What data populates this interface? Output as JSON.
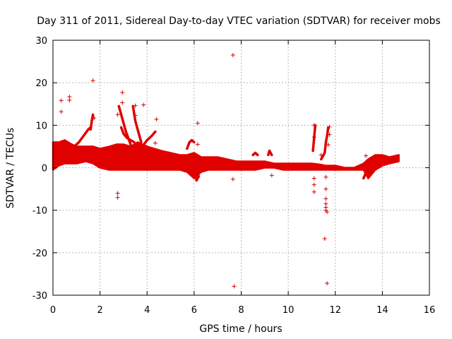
{
  "chart_data": {
    "type": "scatter",
    "title": "Day 311 of 2011, Sidereal Day-to-day VTEC variation (SDTVAR) for receiver mobs",
    "xlabel": "GPS time / hours",
    "ylabel": "SDTVAR / TECUs",
    "xlim": [
      0,
      16
    ],
    "ylim": [
      -30,
      30
    ],
    "xticks": [
      0,
      2,
      4,
      6,
      8,
      10,
      12,
      14,
      16
    ],
    "yticks": [
      -30,
      -20,
      -10,
      0,
      10,
      20,
      30
    ],
    "grid": true,
    "marker": "+",
    "color": "#e00000",
    "band": {
      "x": [
        0,
        0.25,
        0.5,
        0.8,
        1.0,
        1.4,
        1.7,
        2.0,
        2.4,
        2.7,
        3.0,
        3.3,
        3.6,
        4.0,
        4.3,
        4.6,
        5.0,
        5.4,
        5.7,
        6.0,
        6.3,
        6.6,
        7.0,
        7.4,
        7.8,
        8.2,
        8.6,
        9.0,
        9.4,
        9.8,
        10.2,
        10.6,
        11.0,
        11.3,
        11.6,
        12.0,
        12.4,
        12.8,
        13.2,
        13.4,
        13.7,
        14.0,
        14.3,
        14.7
      ],
      "upper": [
        6.0,
        6.0,
        6.5,
        5.5,
        5.0,
        5.0,
        5.0,
        4.5,
        5.0,
        5.5,
        5.5,
        5.0,
        6.0,
        5.0,
        4.5,
        4.0,
        3.5,
        3.0,
        3.0,
        3.5,
        2.5,
        2.5,
        2.5,
        2.0,
        1.5,
        1.5,
        1.5,
        1.5,
        1.0,
        1.0,
        1.0,
        1.0,
        1.0,
        0.8,
        0.5,
        0.5,
        0.0,
        0.0,
        1.0,
        2.0,
        3.0,
        3.0,
        2.5,
        3.0
      ],
      "lower": [
        -0.5,
        0.5,
        1.0,
        1.0,
        1.0,
        1.5,
        1.0,
        0.0,
        -0.5,
        -0.5,
        -0.5,
        -0.5,
        -0.5,
        -0.5,
        -0.5,
        -0.5,
        -0.5,
        -0.5,
        -1.0,
        -2.5,
        -1.0,
        -0.5,
        -0.5,
        -0.5,
        -0.5,
        -0.5,
        -0.5,
        0.0,
        0.0,
        -0.5,
        -0.5,
        -0.5,
        -0.5,
        -0.5,
        -0.5,
        -0.5,
        -0.5,
        -0.5,
        -0.5,
        -2.5,
        -0.5,
        0.5,
        1.0,
        1.5
      ]
    },
    "excursions": [
      {
        "x": [
          0.9,
          1.1,
          1.3,
          1.5,
          1.6
        ],
        "y": [
          5.0,
          6.0,
          7.5,
          9.0,
          9.5
        ]
      },
      {
        "x": [
          1.6,
          1.65,
          1.7
        ],
        "y": [
          9.0,
          11.0,
          12.5
        ]
      },
      {
        "x": [
          2.8,
          2.9,
          3.0,
          3.1,
          3.2,
          3.3
        ],
        "y": [
          14.5,
          12.5,
          10.5,
          8.5,
          7.0,
          5.5
        ]
      },
      {
        "x": [
          2.9,
          3.0,
          3.15,
          3.3,
          3.45
        ],
        "y": [
          9.5,
          8.0,
          7.0,
          6.5,
          6.0
        ]
      },
      {
        "x": [
          3.4,
          3.5,
          3.6,
          3.75
        ],
        "y": [
          14.5,
          11.0,
          9.0,
          6.0
        ]
      },
      {
        "x": [
          3.6,
          3.8,
          4.0,
          4.2,
          4.35
        ],
        "y": [
          3.0,
          5.0,
          6.5,
          7.5,
          8.5
        ]
      },
      {
        "x": [
          5.7,
          5.8,
          5.9,
          6.0
        ],
        "y": [
          4.5,
          6.0,
          6.5,
          6.0
        ]
      },
      {
        "x": [
          6.0,
          6.05,
          6.1,
          6.2
        ],
        "y": [
          2.0,
          -1.0,
          -3.0,
          -2.0
        ]
      },
      {
        "x": [
          8.5,
          8.6,
          8.7
        ],
        "y": [
          3.0,
          3.5,
          3.0
        ]
      },
      {
        "x": [
          9.15,
          9.2,
          9.3
        ],
        "y": [
          3.0,
          4.0,
          3.0
        ]
      },
      {
        "x": [
          11.05,
          11.1,
          11.15
        ],
        "y": [
          4.0,
          7.0,
          10.0
        ]
      },
      {
        "x": [
          11.4,
          11.55,
          11.6,
          11.65,
          11.7
        ],
        "y": [
          2.0,
          3.5,
          6.0,
          7.5,
          9.5
        ]
      },
      {
        "x": [
          13.2,
          13.35,
          13.5,
          13.65,
          13.8
        ],
        "y": [
          -2.5,
          -0.5,
          1.0,
          2.0,
          2.5
        ]
      }
    ],
    "points": [
      [
        0.35,
        15.8
      ],
      [
        0.35,
        13.2
      ],
      [
        0.7,
        16.7
      ],
      [
        0.7,
        15.9
      ],
      [
        1.7,
        20.5
      ],
      [
        1.75,
        11.7
      ],
      [
        2.75,
        -6.0
      ],
      [
        2.75,
        -7.0
      ],
      [
        2.75,
        12.5
      ],
      [
        2.95,
        17.7
      ],
      [
        2.95,
        15.3
      ],
      [
        3.5,
        14.6
      ],
      [
        3.5,
        12.3
      ],
      [
        3.85,
        14.8
      ],
      [
        4.4,
        11.4
      ],
      [
        4.35,
        5.8
      ],
      [
        6.15,
        10.5
      ],
      [
        6.15,
        5.5
      ],
      [
        7.65,
        26.5
      ],
      [
        7.65,
        -2.7
      ],
      [
        7.7,
        -27.9
      ],
      [
        9.3,
        -1.8
      ],
      [
        11.1,
        10.0
      ],
      [
        11.1,
        7.2
      ],
      [
        11.1,
        -2.5
      ],
      [
        11.1,
        -4.0
      ],
      [
        11.1,
        -5.7
      ],
      [
        11.4,
        3.0
      ],
      [
        11.6,
        -2.2
      ],
      [
        11.6,
        -5.0
      ],
      [
        11.6,
        -7.3
      ],
      [
        11.6,
        -8.5
      ],
      [
        11.6,
        -9.3
      ],
      [
        11.6,
        -10.0
      ],
      [
        11.65,
        -10.4
      ],
      [
        11.55,
        -16.7
      ],
      [
        11.65,
        -27.2
      ],
      [
        11.7,
        5.4
      ],
      [
        11.75,
        7.8
      ],
      [
        11.75,
        9.6
      ],
      [
        13.3,
        2.8
      ]
    ]
  }
}
